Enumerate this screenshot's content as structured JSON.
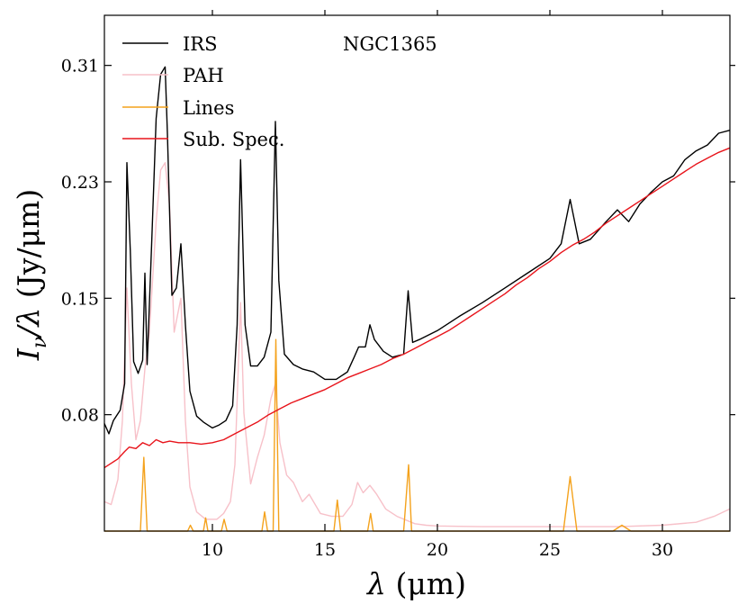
{
  "chart_data": {
    "type": "line",
    "title": "NGC1365",
    "xlabel": {
      "symbol": "λ",
      "unit": " (μm)"
    },
    "ylabel": {
      "symbol_parts": [
        "I",
        "ν",
        "/λ"
      ],
      "unit": " (Jy/μm)"
    },
    "xlim": [
      5.2,
      33.0
    ],
    "ylim": [
      0.0,
      0.35
    ],
    "xticks": [
      10,
      15,
      20,
      25,
      30
    ],
    "yticks": [
      0.08,
      0.15,
      0.23,
      0.31
    ],
    "ytick_positions": [
      0.079,
      0.158,
      0.237,
      0.316
    ],
    "legend": {
      "location": "top-left"
    },
    "series": [
      {
        "name": "IRS",
        "color": "#000000",
        "points": [
          [
            5.2,
            0.073
          ],
          [
            5.4,
            0.066
          ],
          [
            5.6,
            0.075
          ],
          [
            5.9,
            0.082
          ],
          [
            6.1,
            0.1
          ],
          [
            6.2,
            0.25
          ],
          [
            6.35,
            0.19
          ],
          [
            6.5,
            0.115
          ],
          [
            6.7,
            0.107
          ],
          [
            6.9,
            0.116
          ],
          [
            7.0,
            0.175
          ],
          [
            7.1,
            0.113
          ],
          [
            7.3,
            0.195
          ],
          [
            7.5,
            0.28
          ],
          [
            7.7,
            0.31
          ],
          [
            7.9,
            0.315
          ],
          [
            8.0,
            0.27
          ],
          [
            8.2,
            0.16
          ],
          [
            8.4,
            0.165
          ],
          [
            8.6,
            0.195
          ],
          [
            8.8,
            0.14
          ],
          [
            9.0,
            0.095
          ],
          [
            9.3,
            0.078
          ],
          [
            9.6,
            0.074
          ],
          [
            10.0,
            0.07
          ],
          [
            10.3,
            0.072
          ],
          [
            10.6,
            0.075
          ],
          [
            10.9,
            0.085
          ],
          [
            11.1,
            0.14
          ],
          [
            11.25,
            0.252
          ],
          [
            11.45,
            0.14
          ],
          [
            11.7,
            0.112
          ],
          [
            12.0,
            0.112
          ],
          [
            12.3,
            0.118
          ],
          [
            12.6,
            0.135
          ],
          [
            12.8,
            0.278
          ],
          [
            12.95,
            0.17
          ],
          [
            13.2,
            0.12
          ],
          [
            13.6,
            0.113
          ],
          [
            14.0,
            0.11
          ],
          [
            14.5,
            0.108
          ],
          [
            15.0,
            0.103
          ],
          [
            15.5,
            0.103
          ],
          [
            16.0,
            0.108
          ],
          [
            16.3,
            0.118
          ],
          [
            16.5,
            0.125
          ],
          [
            16.8,
            0.125
          ],
          [
            17.0,
            0.14
          ],
          [
            17.2,
            0.13
          ],
          [
            17.6,
            0.122
          ],
          [
            18.0,
            0.118
          ],
          [
            18.5,
            0.12
          ],
          [
            18.7,
            0.163
          ],
          [
            18.9,
            0.128
          ],
          [
            19.2,
            0.13
          ],
          [
            19.6,
            0.133
          ],
          [
            20.0,
            0.136
          ],
          [
            21.0,
            0.146
          ],
          [
            22.0,
            0.155
          ],
          [
            23.0,
            0.165
          ],
          [
            24.0,
            0.175
          ],
          [
            25.0,
            0.185
          ],
          [
            25.5,
            0.195
          ],
          [
            25.9,
            0.225
          ],
          [
            26.3,
            0.195
          ],
          [
            26.8,
            0.198
          ],
          [
            27.5,
            0.21
          ],
          [
            28.0,
            0.218
          ],
          [
            28.5,
            0.21
          ],
          [
            29.0,
            0.222
          ],
          [
            29.5,
            0.23
          ],
          [
            30.0,
            0.237
          ],
          [
            30.5,
            0.241
          ],
          [
            31.0,
            0.252
          ],
          [
            31.5,
            0.258
          ],
          [
            32.0,
            0.262
          ],
          [
            32.5,
            0.27
          ],
          [
            33.0,
            0.272
          ]
        ]
      },
      {
        "name": "PAH",
        "color": "#f7c1c9",
        "points": [
          [
            5.2,
            0.02
          ],
          [
            5.5,
            0.018
          ],
          [
            5.8,
            0.035
          ],
          [
            6.0,
            0.075
          ],
          [
            6.2,
            0.165
          ],
          [
            6.4,
            0.1
          ],
          [
            6.6,
            0.062
          ],
          [
            6.8,
            0.075
          ],
          [
            7.0,
            0.11
          ],
          [
            7.2,
            0.135
          ],
          [
            7.5,
            0.21
          ],
          [
            7.7,
            0.245
          ],
          [
            7.9,
            0.25
          ],
          [
            8.1,
            0.22
          ],
          [
            8.3,
            0.135
          ],
          [
            8.6,
            0.158
          ],
          [
            8.8,
            0.075
          ],
          [
            9.0,
            0.03
          ],
          [
            9.3,
            0.013
          ],
          [
            9.7,
            0.008
          ],
          [
            10.2,
            0.008
          ],
          [
            10.5,
            0.012
          ],
          [
            10.8,
            0.02
          ],
          [
            11.0,
            0.045
          ],
          [
            11.25,
            0.155
          ],
          [
            11.4,
            0.08
          ],
          [
            11.7,
            0.032
          ],
          [
            12.0,
            0.05
          ],
          [
            12.3,
            0.065
          ],
          [
            12.6,
            0.09
          ],
          [
            12.8,
            0.1
          ],
          [
            13.0,
            0.06
          ],
          [
            13.3,
            0.038
          ],
          [
            13.6,
            0.033
          ],
          [
            14.0,
            0.02
          ],
          [
            14.3,
            0.025
          ],
          [
            14.8,
            0.012
          ],
          [
            15.3,
            0.01
          ],
          [
            15.8,
            0.01
          ],
          [
            16.2,
            0.018
          ],
          [
            16.45,
            0.033
          ],
          [
            16.7,
            0.026
          ],
          [
            17.0,
            0.031
          ],
          [
            17.3,
            0.025
          ],
          [
            17.7,
            0.015
          ],
          [
            18.2,
            0.01
          ],
          [
            19.0,
            0.005
          ],
          [
            19.5,
            0.004
          ],
          [
            20.0,
            0.0035
          ],
          [
            22.0,
            0.003
          ],
          [
            25.0,
            0.003
          ],
          [
            28.0,
            0.003
          ],
          [
            30.0,
            0.004
          ],
          [
            31.5,
            0.006
          ],
          [
            32.3,
            0.01
          ],
          [
            33.0,
            0.015
          ]
        ]
      },
      {
        "name": "Lines",
        "color": "#f4a21c",
        "points": [
          [
            5.2,
            0.0
          ],
          [
            6.8,
            0.0
          ],
          [
            6.95,
            0.05
          ],
          [
            7.1,
            0.0
          ],
          [
            8.9,
            0.0
          ],
          [
            9.02,
            0.004
          ],
          [
            9.15,
            0.0
          ],
          [
            9.6,
            0.0
          ],
          [
            9.7,
            0.009
          ],
          [
            9.8,
            0.0
          ],
          [
            10.4,
            0.0
          ],
          [
            10.52,
            0.008
          ],
          [
            10.65,
            0.0
          ],
          [
            12.2,
            0.0
          ],
          [
            12.32,
            0.013
          ],
          [
            12.45,
            0.0
          ],
          [
            12.7,
            0.0
          ],
          [
            12.82,
            0.13
          ],
          [
            12.95,
            0.0
          ],
          [
            15.4,
            0.0
          ],
          [
            15.55,
            0.021
          ],
          [
            15.7,
            0.0
          ],
          [
            16.9,
            0.0
          ],
          [
            17.03,
            0.012
          ],
          [
            17.15,
            0.0
          ],
          [
            18.5,
            0.0
          ],
          [
            18.72,
            0.045
          ],
          [
            18.85,
            0.0
          ],
          [
            25.6,
            0.0
          ],
          [
            25.9,
            0.037
          ],
          [
            26.2,
            0.0
          ],
          [
            27.8,
            0.0
          ],
          [
            28.2,
            0.004
          ],
          [
            28.6,
            0.0
          ],
          [
            33.0,
            0.0
          ]
        ]
      },
      {
        "name": "Sub. Spec.",
        "color": "#e8141b",
        "points": [
          [
            5.2,
            0.043
          ],
          [
            5.5,
            0.046
          ],
          [
            5.8,
            0.049
          ],
          [
            6.1,
            0.054
          ],
          [
            6.3,
            0.057
          ],
          [
            6.6,
            0.056
          ],
          [
            6.9,
            0.06
          ],
          [
            7.2,
            0.058
          ],
          [
            7.5,
            0.062
          ],
          [
            7.8,
            0.06
          ],
          [
            8.1,
            0.061
          ],
          [
            8.5,
            0.06
          ],
          [
            9.0,
            0.06
          ],
          [
            9.5,
            0.059
          ],
          [
            10.0,
            0.06
          ],
          [
            10.5,
            0.062
          ],
          [
            11.0,
            0.066
          ],
          [
            11.5,
            0.07
          ],
          [
            12.0,
            0.074
          ],
          [
            12.5,
            0.079
          ],
          [
            13.0,
            0.083
          ],
          [
            13.5,
            0.087
          ],
          [
            14.0,
            0.09
          ],
          [
            14.5,
            0.093
          ],
          [
            15.0,
            0.096
          ],
          [
            15.5,
            0.1
          ],
          [
            16.0,
            0.104
          ],
          [
            16.5,
            0.107
          ],
          [
            17.0,
            0.11
          ],
          [
            17.5,
            0.113
          ],
          [
            18.0,
            0.117
          ],
          [
            18.5,
            0.12
          ],
          [
            19.0,
            0.124
          ],
          [
            19.5,
            0.128
          ],
          [
            20.0,
            0.132
          ],
          [
            20.5,
            0.136
          ],
          [
            21.0,
            0.141
          ],
          [
            21.5,
            0.146
          ],
          [
            22.0,
            0.151
          ],
          [
            22.5,
            0.156
          ],
          [
            23.0,
            0.161
          ],
          [
            23.5,
            0.167
          ],
          [
            24.0,
            0.172
          ],
          [
            24.5,
            0.178
          ],
          [
            25.0,
            0.183
          ],
          [
            25.5,
            0.189
          ],
          [
            26.0,
            0.194
          ],
          [
            26.5,
            0.198
          ],
          [
            27.0,
            0.203
          ],
          [
            27.5,
            0.209
          ],
          [
            28.0,
            0.214
          ],
          [
            28.5,
            0.219
          ],
          [
            29.0,
            0.224
          ],
          [
            29.5,
            0.229
          ],
          [
            30.0,
            0.234
          ],
          [
            30.5,
            0.239
          ],
          [
            31.0,
            0.244
          ],
          [
            31.5,
            0.249
          ],
          [
            32.0,
            0.253
          ],
          [
            32.5,
            0.257
          ],
          [
            33.0,
            0.26
          ]
        ]
      }
    ]
  }
}
